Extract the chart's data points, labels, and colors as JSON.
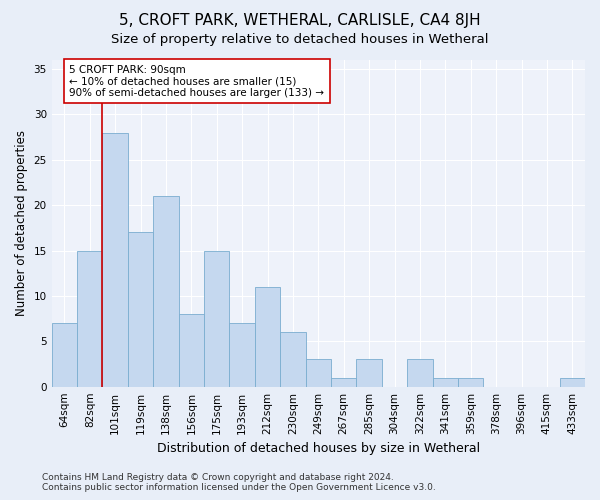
{
  "title": "5, CROFT PARK, WETHERAL, CARLISLE, CA4 8JH",
  "subtitle": "Size of property relative to detached houses in Wetheral",
  "xlabel": "Distribution of detached houses by size in Wetheral",
  "ylabel": "Number of detached properties",
  "categories": [
    "64sqm",
    "82sqm",
    "101sqm",
    "119sqm",
    "138sqm",
    "156sqm",
    "175sqm",
    "193sqm",
    "212sqm",
    "230sqm",
    "249sqm",
    "267sqm",
    "285sqm",
    "304sqm",
    "322sqm",
    "341sqm",
    "359sqm",
    "378sqm",
    "396sqm",
    "415sqm",
    "433sqm"
  ],
  "values": [
    7,
    15,
    28,
    17,
    21,
    8,
    15,
    7,
    11,
    6,
    3,
    1,
    3,
    0,
    3,
    1,
    1,
    0,
    0,
    0,
    1
  ],
  "bar_color": "#c5d8ef",
  "bar_edgecolor": "#7aadcf",
  "bar_linewidth": 0.6,
  "vline_x": 1.5,
  "vline_color": "#cc0000",
  "annotation_text": "5 CROFT PARK: 90sqm\n← 10% of detached houses are smaller (15)\n90% of semi-detached houses are larger (133) →",
  "annotation_box_edgecolor": "#cc0000",
  "annotation_box_facecolor": "#ffffff",
  "ylim": [
    0,
    36
  ],
  "yticks": [
    0,
    5,
    10,
    15,
    20,
    25,
    30,
    35
  ],
  "footer": "Contains HM Land Registry data © Crown copyright and database right 2024.\nContains public sector information licensed under the Open Government Licence v3.0.",
  "bg_color": "#e8eef8",
  "plot_bg_color": "#eef2fa",
  "title_fontsize": 11,
  "subtitle_fontsize": 9.5,
  "tick_fontsize": 7.5,
  "ylabel_fontsize": 8.5,
  "xlabel_fontsize": 9,
  "footer_fontsize": 6.5,
  "annotation_fontsize": 7.5
}
